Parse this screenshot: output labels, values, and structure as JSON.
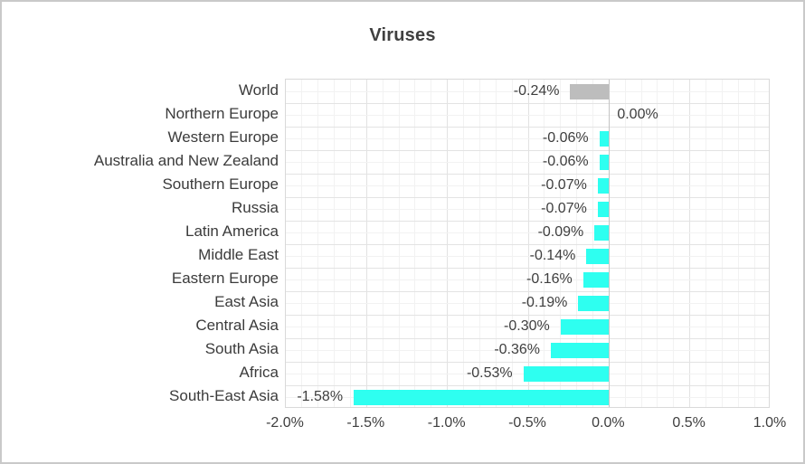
{
  "window": {
    "background": "#ffffff",
    "frame_border_color": "#c9c9c9"
  },
  "chart_data": {
    "type": "bar",
    "orientation": "horizontal",
    "title": "Viruses",
    "xlabel": "",
    "ylabel": "",
    "categories": [
      "World",
      "Northern Europe",
      "Western Europe",
      "Australia and New Zealand",
      "Southern Europe",
      "Russia",
      "Latin America",
      "Middle East",
      "Eastern Europe",
      "East Asia",
      "Central Asia",
      "South Asia",
      "Africa",
      "South-East Asia"
    ],
    "values": [
      -0.24,
      0.0,
      -0.06,
      -0.06,
      -0.07,
      -0.07,
      -0.09,
      -0.14,
      -0.16,
      -0.19,
      -0.3,
      -0.36,
      -0.53,
      -1.58
    ],
    "value_labels": [
      "-0.24%",
      "0.00%",
      "-0.06%",
      "-0.06%",
      "-0.07%",
      "-0.07%",
      "-0.09%",
      "-0.14%",
      "-0.16%",
      "-0.19%",
      "-0.30%",
      "-0.36%",
      "-0.53%",
      "-1.58%"
    ],
    "bar_colors": [
      "#bdbdbd",
      "#2efff0",
      "#2efff0",
      "#2efff0",
      "#2efff0",
      "#2efff0",
      "#2efff0",
      "#2efff0",
      "#2efff0",
      "#2efff0",
      "#2efff0",
      "#2efff0",
      "#2efff0",
      "#2efff0"
    ],
    "xlim": [
      -2.0,
      1.0
    ],
    "x_ticks": [
      -2.0,
      -1.5,
      -1.0,
      -0.5,
      0.0,
      0.5,
      1.0
    ],
    "x_tick_labels": [
      "-2.0%",
      "-1.5%",
      "-1.0%",
      "-0.5%",
      "0.0%",
      "0.5%",
      "1.0%"
    ],
    "minor_tick_step": 0.1,
    "grid": "on",
    "legend": "none",
    "colors": {
      "accent_bar": "#2efff0",
      "world_bar": "#bdbdbd",
      "major_gridline": "#e2e2e2",
      "minor_gridline": "#f2f2f2",
      "row_boundary_line": "#e3e3e3",
      "row_mid_line": "#f2f2f2",
      "zero_line": "#c4c4c4",
      "plot_border": "#d9d9d9",
      "text": "#3e3e3e",
      "title_text": "#404040"
    }
  }
}
